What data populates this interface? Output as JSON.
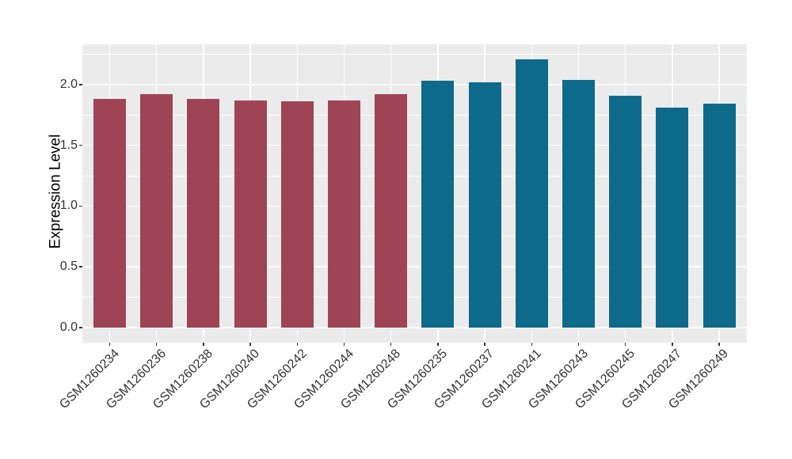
{
  "figure": {
    "background": "#ffffff",
    "panel_background": "#ebebeb",
    "grid_color": "#ffffff",
    "tick_color": "#333333",
    "tick_label_color": "#333333",
    "axis_title_color": "#000000"
  },
  "chart_data": {
    "type": "bar",
    "title": "",
    "xlabel": "",
    "ylabel": "Expression Level",
    "categories": [
      "GSM1260234",
      "GSM1260236",
      "GSM1260238",
      "GSM1260240",
      "GSM1260242",
      "GSM1260244",
      "GSM1260248",
      "GSM1260235",
      "GSM1260237",
      "GSM1260241",
      "GSM1260243",
      "GSM1260245",
      "GSM1260247",
      "GSM1260249"
    ],
    "values": [
      1.88,
      1.92,
      1.88,
      1.87,
      1.86,
      1.87,
      1.92,
      2.03,
      2.02,
      2.21,
      2.04,
      1.91,
      1.81,
      1.84
    ],
    "bar_colors": [
      "#9e4455",
      "#9e4455",
      "#9e4455",
      "#9e4455",
      "#9e4455",
      "#9e4455",
      "#9e4455",
      "#0d6a8b",
      "#0d6a8b",
      "#0d6a8b",
      "#0d6a8b",
      "#0d6a8b",
      "#0d6a8b",
      "#0d6a8b"
    ],
    "ylim": [
      0,
      2.33
    ],
    "yticks": [
      0.0,
      0.5,
      1.0,
      1.5,
      2.0
    ],
    "ytick_labels": [
      "0.0",
      "0.5",
      "1.0",
      "1.5",
      "2.0"
    ],
    "yticks_minor": [
      0.25,
      0.75,
      1.25,
      1.75,
      2.25
    ],
    "x_tick_angle_deg": 45,
    "grid": true,
    "legend": "none"
  }
}
